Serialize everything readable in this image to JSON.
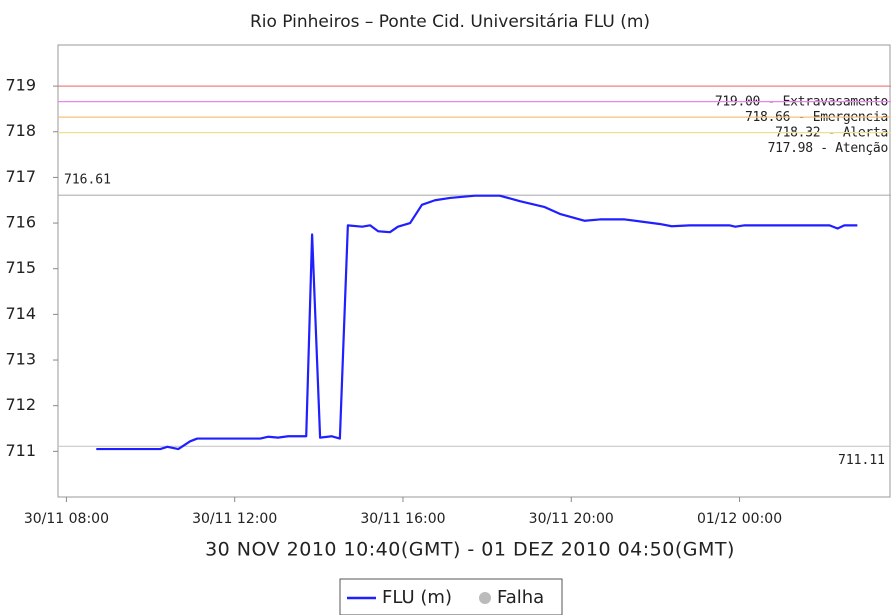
{
  "chart_data": {
    "type": "line",
    "title": "Rio Pinheiros – Ponte Cid. Universitária FLU (m)",
    "x_label": "30 NOV 2010 10:40(GMT) - 01 DEZ 2010 04:50(GMT)",
    "x": [
      8.71,
      10.23,
      10.4,
      10.66,
      10.94,
      11.11,
      12.61,
      12.8,
      13.03,
      13.27,
      13.7,
      13.84,
      14.03,
      14.31,
      14.5,
      14.69,
      15.03,
      15.22,
      15.41,
      15.69,
      15.88,
      16.17,
      16.45,
      16.76,
      17.12,
      17.71,
      18.3,
      18.78,
      19.37,
      19.73,
      20.32,
      20.68,
      21.27,
      22.1,
      22.39,
      22.81,
      23.76,
      23.9,
      24.12,
      26.14,
      26.33,
      26.49,
      26.8
    ],
    "series": [
      {
        "name": "FLU (m)",
        "color": "#1f1fff",
        "values": [
          711.05,
          711.05,
          711.1,
          711.05,
          711.22,
          711.28,
          711.28,
          711.32,
          711.3,
          711.33,
          711.33,
          715.75,
          711.3,
          711.33,
          711.28,
          715.95,
          715.92,
          715.95,
          715.82,
          715.8,
          715.92,
          716.0,
          716.4,
          716.5,
          716.55,
          716.6,
          716.6,
          716.48,
          716.35,
          716.2,
          716.05,
          716.08,
          716.08,
          715.98,
          715.93,
          715.95,
          715.95,
          715.92,
          715.95,
          715.95,
          715.88,
          715.95,
          715.95
        ]
      }
    ],
    "legend_extra": {
      "name": "Falha",
      "color": "#bbbbbb"
    },
    "alert_levels": [
      {
        "value": 719.0,
        "label": "719.00 - Extravasamento",
        "color": "#f08080"
      },
      {
        "value": 718.66,
        "label": "718.66 - Emergencia",
        "color": "#ee82ee"
      },
      {
        "value": 718.32,
        "label": "718.32 - Alerta",
        "color": "#f5c27a"
      },
      {
        "value": 717.98,
        "label": "717.98 - Atenção",
        "color": "#eee08a"
      }
    ],
    "markers": [
      {
        "value": 716.61,
        "label": "716.61",
        "color": "#b0b0b0"
      },
      {
        "value": 711.11,
        "label": "711.11",
        "color": "#c8c8c8"
      }
    ],
    "xlim": [
      7.8,
      27.6
    ],
    "ylim": [
      710.0,
      719.9
    ],
    "yticks": [
      711,
      712,
      713,
      714,
      715,
      716,
      717,
      718,
      719
    ],
    "xticks": [
      {
        "value": 8,
        "label": "30/11 08:00"
      },
      {
        "value": 12,
        "label": "30/11 12:00"
      },
      {
        "value": 16,
        "label": "30/11 16:00"
      },
      {
        "value": 20,
        "label": "30/11 20:00"
      },
      {
        "value": 24,
        "label": "01/12 00:00"
      }
    ]
  }
}
